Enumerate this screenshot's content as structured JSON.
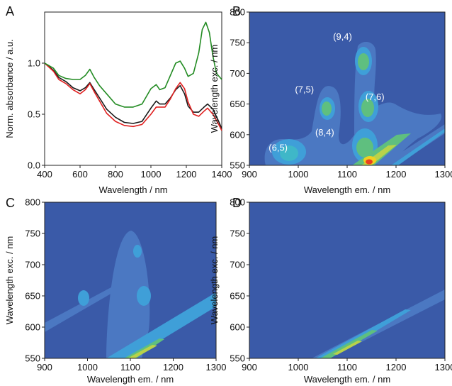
{
  "chart_data": [
    {
      "panel": "A",
      "type": "line",
      "xlabel": "Wavelength / nm",
      "ylabel": "Norm. absorbance / a.u.",
      "xlim": [
        400,
        1400
      ],
      "ylim": [
        0.0,
        1.5
      ],
      "xticks": [
        "400",
        "600",
        "800",
        "1000",
        "1200",
        "1400"
      ],
      "yticks": [
        "0.0",
        "0.5",
        "1.0"
      ],
      "series": [
        {
          "color": "#1a1a1a",
          "x": [
            400,
            450,
            480,
            520,
            560,
            600,
            630,
            655,
            680,
            710,
            750,
            800,
            850,
            900,
            950,
            1000,
            1030,
            1050,
            1080,
            1110,
            1140,
            1165,
            1190,
            1210,
            1240,
            1270,
            1300,
            1320,
            1350,
            1380,
            1400
          ],
          "y": [
            1.0,
            0.93,
            0.86,
            0.82,
            0.76,
            0.73,
            0.76,
            0.81,
            0.74,
            0.66,
            0.55,
            0.47,
            0.42,
            0.41,
            0.43,
            0.56,
            0.63,
            0.6,
            0.6,
            0.66,
            0.74,
            0.78,
            0.7,
            0.58,
            0.52,
            0.52,
            0.57,
            0.6,
            0.55,
            0.44,
            0.36
          ]
        },
        {
          "color": "#e02020",
          "x": [
            400,
            450,
            480,
            520,
            560,
            600,
            630,
            655,
            680,
            710,
            750,
            800,
            850,
            900,
            950,
            1000,
            1030,
            1050,
            1080,
            1110,
            1140,
            1165,
            1190,
            1210,
            1240,
            1270,
            1300,
            1320,
            1350,
            1380,
            1400
          ],
          "y": [
            1.0,
            0.92,
            0.84,
            0.8,
            0.74,
            0.7,
            0.74,
            0.8,
            0.72,
            0.63,
            0.51,
            0.43,
            0.39,
            0.38,
            0.4,
            0.5,
            0.57,
            0.57,
            0.57,
            0.65,
            0.75,
            0.81,
            0.75,
            0.62,
            0.5,
            0.48,
            0.53,
            0.56,
            0.5,
            0.41,
            0.34
          ]
        },
        {
          "color": "#228b22",
          "x": [
            400,
            450,
            480,
            520,
            560,
            600,
            630,
            655,
            680,
            710,
            750,
            800,
            850,
            900,
            950,
            1000,
            1030,
            1050,
            1080,
            1110,
            1140,
            1165,
            1190,
            1210,
            1240,
            1270,
            1290,
            1310,
            1330,
            1350,
            1370,
            1400
          ],
          "y": [
            1.0,
            0.95,
            0.88,
            0.85,
            0.84,
            0.84,
            0.88,
            0.94,
            0.86,
            0.78,
            0.7,
            0.6,
            0.57,
            0.57,
            0.6,
            0.75,
            0.79,
            0.74,
            0.76,
            0.88,
            1.0,
            1.02,
            0.95,
            0.87,
            0.9,
            1.1,
            1.33,
            1.4,
            1.3,
            1.07,
            0.9,
            0.84
          ]
        }
      ]
    },
    {
      "panel": "B",
      "type": "heatmap",
      "xlabel": "Wavelength em. / nm",
      "ylabel": "Wavelength exc. / nm",
      "xlim": [
        900,
        1300
      ],
      "ylim": [
        550,
        800
      ],
      "xticks": [
        "900",
        "1000",
        "1100",
        "1200",
        "1300"
      ],
      "yticks": [
        "550",
        "600",
        "650",
        "700",
        "750",
        "800"
      ],
      "peaks": [
        {
          "label": "(6,5)",
          "em": 985,
          "exc": 567
        },
        {
          "label": "(7,5)",
          "em": 1030,
          "exc": 641
        },
        {
          "label": "(9,4)",
          "em": 1108,
          "exc": 720
        },
        {
          "label": "(8,4)",
          "em": 1115,
          "exc": 587
        },
        {
          "label": "(7,6)",
          "em": 1125,
          "exc": 645
        }
      ]
    },
    {
      "panel": "C",
      "type": "heatmap",
      "xlabel": "Wavelength em. / nm",
      "ylabel": "Wavelength exc. / nm",
      "xlim": [
        900,
        1300
      ],
      "ylim": [
        550,
        800
      ],
      "xticks": [
        "900",
        "1000",
        "1100",
        "1200",
        "1300"
      ],
      "yticks": [
        "550",
        "600",
        "650",
        "700",
        "750",
        "800"
      ],
      "peaks": []
    },
    {
      "panel": "D",
      "type": "heatmap",
      "xlabel": "Wavelength em. / nm",
      "ylabel": "Wavelength exc. / nm",
      "xlim": [
        900,
        1300
      ],
      "ylim": [
        550,
        800
      ],
      "xticks": [
        "900",
        "1000",
        "1100",
        "1200",
        "1300"
      ],
      "yticks": [
        "550",
        "600",
        "650",
        "700",
        "750",
        "800"
      ],
      "peaks": []
    }
  ],
  "colors": {
    "map_background": "#3a5aa8",
    "level1": "#4b78c2",
    "level2": "#3f9fd8",
    "level3": "#3fb7c8",
    "level4": "#5fbf7f",
    "level5": "#b8d24a",
    "level6": "#f0d020",
    "level7": "#e84020"
  }
}
